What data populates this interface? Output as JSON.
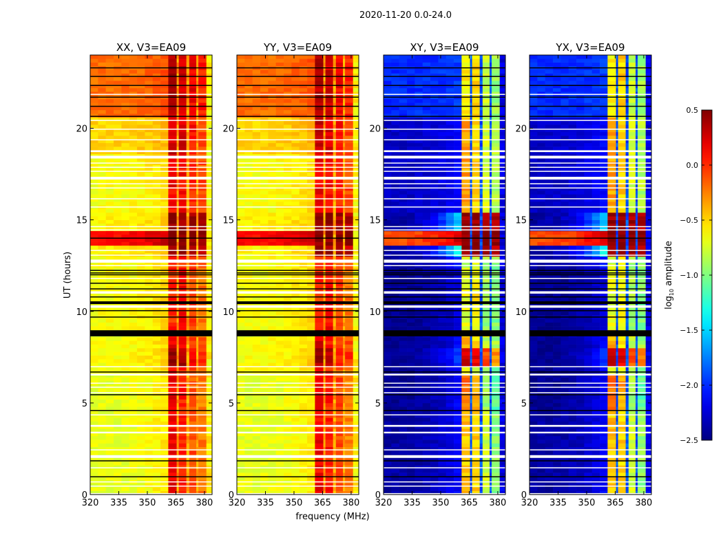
{
  "chart_data": {
    "type": "heatmap",
    "title": "2020-11-20 0.0-24.0",
    "xlabel": "frequency (MHz)",
    "ylabel": "UT (hours)",
    "xlim": [
      320,
      384
    ],
    "ylim": [
      0,
      24
    ],
    "xticks": [
      "320",
      "335",
      "350",
      "365",
      "380"
    ],
    "yticks": [
      "0",
      "5",
      "10",
      "15",
      "20"
    ],
    "colormap": "jet",
    "colorbar": {
      "label_prefix": "log",
      "label_sub": "10",
      "label_suffix": " amplitude",
      "range": [
        -2.5,
        0.5
      ],
      "ticks": [
        "0.5",
        "0.0",
        "−0.5",
        "−1.0",
        "−1.5",
        "−2.0",
        "−2.5"
      ]
    },
    "bands_mhz": [
      [
        361,
        365.4
      ],
      [
        366.5,
        370.5
      ],
      [
        372,
        375.7
      ],
      [
        376.8,
        381
      ]
    ],
    "panels": [
      {
        "title": "XX, V3=EA09",
        "profile": "parallel"
      },
      {
        "title": "YY, V3=EA09",
        "profile": "parallel"
      },
      {
        "title": "XY, V3=EA09",
        "profile": "cross"
      },
      {
        "title": "YX, V3=EA09",
        "profile": "cross"
      }
    ],
    "profiles": {
      "parallel": {
        "gap_level": -0.35,
        "tail_level": -0.6,
        "segments_t0_t1_lowleft_lowright_bands": [
          [
            20.65,
            24,
            -0.2,
            -0.1,
            [
              0.35,
              0.25,
              0.15,
              0.05
            ]
          ],
          [
            18.6,
            20.65,
            -0.5,
            -0.4,
            [
              0.3,
              0.25,
              0.1,
              -0.1
            ]
          ],
          [
            15.5,
            18.6,
            -0.65,
            -0.5,
            [
              0.15,
              0.1,
              0.0,
              -0.1
            ]
          ],
          [
            14.4,
            15.5,
            -0.6,
            -0.45,
            [
              0.45,
              0.45,
              0.4,
              0.35
            ]
          ],
          [
            13.55,
            14.4,
            0.1,
            0.3,
            [
              0.5,
              0.5,
              0.5,
              0.5
            ]
          ],
          [
            13.0,
            13.55,
            -0.6,
            -0.45,
            [
              0.45,
              0.4,
              0.4,
              0.3
            ]
          ],
          [
            12.5,
            13.0,
            -0.65,
            -0.5,
            [
              0.0,
              0.0,
              -0.1,
              -0.2
            ]
          ],
          [
            8.97,
            12.5,
            -0.65,
            -0.5,
            [
              0.0,
              0.1,
              -0.05,
              -0.2
            ]
          ],
          [
            8.0,
            8.64,
            -0.65,
            -0.5,
            [
              0.2,
              0.1,
              0.0,
              -0.1
            ]
          ],
          [
            7.0,
            8.0,
            -0.65,
            -0.45,
            [
              0.4,
              0.35,
              0.1,
              0.0
            ]
          ],
          [
            6.6,
            7.0,
            -0.65,
            -0.5,
            [
              0.1,
              0.0,
              -0.1,
              -0.2
            ]
          ],
          [
            0,
            6.6,
            -0.7,
            -0.55,
            [
              0.15,
              0.05,
              -0.1,
              -0.25
            ]
          ]
        ]
      },
      "cross": {
        "gap_level": -1.9,
        "tail_level": -2.2,
        "segments_t0_t1_lowleft_lowright_bands": [
          [
            20.65,
            24,
            -2.0,
            -1.95,
            [
              -0.6,
              -0.5,
              -0.8,
              -0.9
            ]
          ],
          [
            15.5,
            20.65,
            -2.3,
            -2.1,
            [
              -0.35,
              -0.5,
              -0.75,
              -0.85
            ]
          ],
          [
            14.4,
            15.5,
            -2.4,
            -1.4,
            [
              0.45,
              0.45,
              0.4,
              0.35
            ]
          ],
          [
            13.55,
            14.4,
            -0.1,
            0.3,
            [
              0.5,
              0.5,
              0.5,
              0.5
            ]
          ],
          [
            13.0,
            13.55,
            -2.4,
            -1.2,
            [
              0.45,
              0.45,
              0.4,
              0.35
            ]
          ],
          [
            12.5,
            13.0,
            -2.4,
            -2.0,
            [
              -0.8,
              -0.7,
              -0.9,
              -1.0
            ]
          ],
          [
            8.97,
            12.5,
            -2.45,
            -2.2,
            [
              -0.7,
              -0.6,
              -0.9,
              -1.0
            ]
          ],
          [
            8.0,
            8.64,
            -2.45,
            -2.1,
            [
              -0.4,
              -0.5,
              -0.8,
              -0.9
            ]
          ],
          [
            7.0,
            8.0,
            -2.45,
            -1.9,
            [
              0.25,
              0.2,
              -0.1,
              -0.3
            ]
          ],
          [
            6.6,
            7.0,
            -2.45,
            -2.1,
            [
              -0.7,
              -0.7,
              -0.9,
              -1.0
            ]
          ],
          [
            4.6,
            6.6,
            -2.45,
            -2.1,
            [
              -0.2,
              -0.35,
              -0.9,
              -1.1
            ]
          ],
          [
            0,
            4.6,
            -2.4,
            -2.1,
            [
              -0.45,
              -0.5,
              -0.75,
              -0.95
            ]
          ]
        ]
      }
    },
    "flagged_white_hours": [
      [
        21.85,
        21.85
      ],
      [
        20.43,
        20.43
      ],
      [
        19.95,
        19.95
      ],
      [
        19.37,
        19.37
      ],
      [
        18.7,
        18.8
      ],
      [
        18.35,
        18.5
      ],
      [
        18.1,
        18.1
      ],
      [
        17.87,
        17.87
      ],
      [
        17.65,
        17.65
      ],
      [
        17.2,
        17.35
      ],
      [
        16.97,
        16.97
      ],
      [
        16.74,
        16.74
      ],
      [
        16.15,
        16.15
      ],
      [
        15.7,
        15.7
      ],
      [
        14.63,
        14.63
      ],
      [
        14.45,
        14.45
      ],
      [
        13.33,
        13.33
      ],
      [
        13.07,
        13.07
      ],
      [
        12.66,
        12.83
      ],
      [
        12.5,
        12.5
      ],
      [
        11.8,
        11.8
      ],
      [
        10.97,
        11.1
      ],
      [
        10.2,
        10.33
      ],
      [
        6.98,
        6.98
      ],
      [
        6.5,
        6.6
      ],
      [
        6.08,
        6.08
      ],
      [
        5.86,
        5.86
      ],
      [
        5.56,
        5.56
      ],
      [
        4.35,
        4.35
      ],
      [
        3.7,
        3.8
      ],
      [
        3.34,
        3.43
      ],
      [
        2.44,
        2.44
      ],
      [
        2.0,
        2.15
      ],
      [
        1.46,
        1.46
      ],
      [
        0.69,
        0.69
      ],
      [
        0.46,
        0.46
      ],
      [
        0.05,
        0.05
      ]
    ],
    "black_rows_hours": [
      [
        23.3,
        23.3
      ],
      [
        22.83,
        22.83
      ],
      [
        22.34,
        22.34
      ],
      [
        21.7,
        21.7
      ],
      [
        21.2,
        21.2
      ],
      [
        20.65,
        20.65
      ],
      [
        14.0,
        14.0
      ],
      [
        12.24,
        12.24
      ],
      [
        12.1,
        12.1
      ],
      [
        12.0,
        12.0
      ],
      [
        11.54,
        11.54
      ],
      [
        11.23,
        11.23
      ],
      [
        10.79,
        10.79
      ],
      [
        10.4,
        10.55
      ],
      [
        10.04,
        10.04
      ],
      [
        9.69,
        9.69
      ],
      [
        8.64,
        8.97
      ],
      [
        6.69,
        6.69
      ],
      [
        5.4,
        5.45
      ],
      [
        4.59,
        4.59
      ],
      [
        1.84,
        1.84
      ],
      [
        0.97,
        0.97
      ]
    ]
  }
}
